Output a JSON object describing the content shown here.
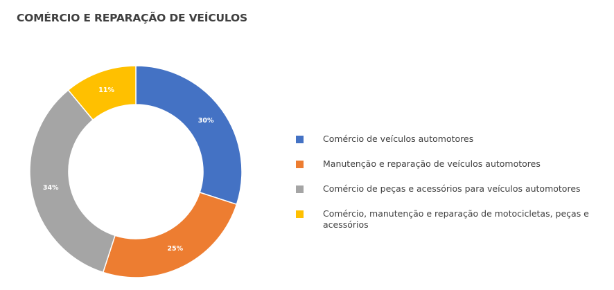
{
  "chart_data": {
    "type": "pie",
    "title": "COMÉRCIO E REPARAÇÃO DE VEÍCULOS",
    "donut": true,
    "legend_position": "right",
    "slices": [
      {
        "label": "Comércio de veículos automotores",
        "value": 30,
        "value_label": "30%",
        "color": "#4472C4"
      },
      {
        "label": "Manutenção e reparação de veículos automotores",
        "value": 25,
        "value_label": "25%",
        "color": "#ED7D31"
      },
      {
        "label": "Comércio de peças e acessórios para veículos automotores",
        "value": 34,
        "value_label": "34%",
        "color": "#A5A5A5"
      },
      {
        "label": "Comércio, manutenção e reparação de motocicletas, peças e acessórios",
        "value": 11,
        "value_label": "11%",
        "color": "#FFC000"
      }
    ]
  }
}
